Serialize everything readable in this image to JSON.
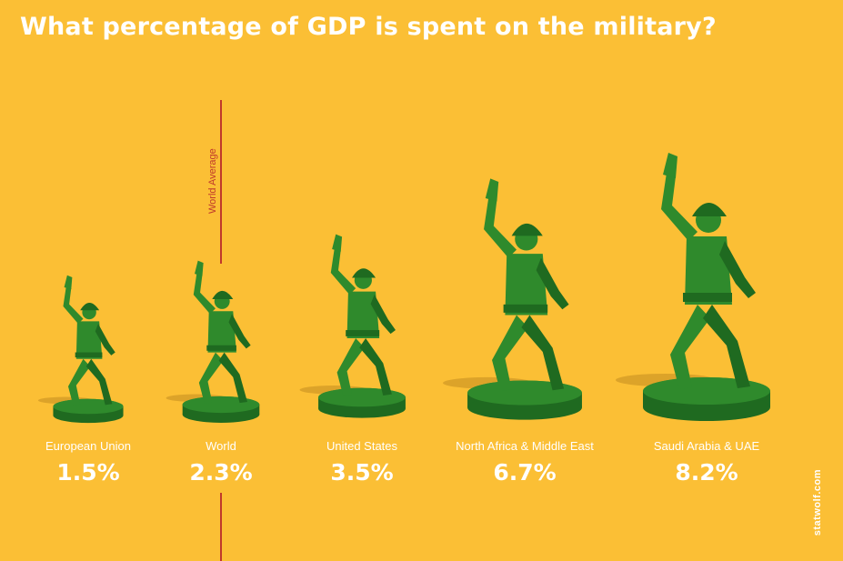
{
  "title": "What percentage of GDP is spent on the military?",
  "credit": "statwolf.com",
  "colors": {
    "background": "#fbbf35",
    "soldier": "#2f8a2c",
    "soldier_dark": "#1f6a20",
    "reference_line": "#c0392b",
    "text": "#ffffff"
  },
  "chart_data": {
    "type": "bar",
    "title": "What percentage of GDP is spent on the military?",
    "categories": [
      "European Union",
      "World",
      "United States",
      "North Africa & Middle East",
      "Saudi Arabia & UAE"
    ],
    "values": [
      1.5,
      2.3,
      3.5,
      6.7,
      8.2
    ],
    "value_labels": [
      "1.5%",
      "2.3%",
      "3.5%",
      "6.7%",
      "8.2%"
    ],
    "unit": "%",
    "reference_line": {
      "label": "World Average",
      "value": 2.3,
      "category": "World"
    },
    "mark": "toy soldier figure scaled by value",
    "xlabel": "",
    "ylabel": ""
  }
}
